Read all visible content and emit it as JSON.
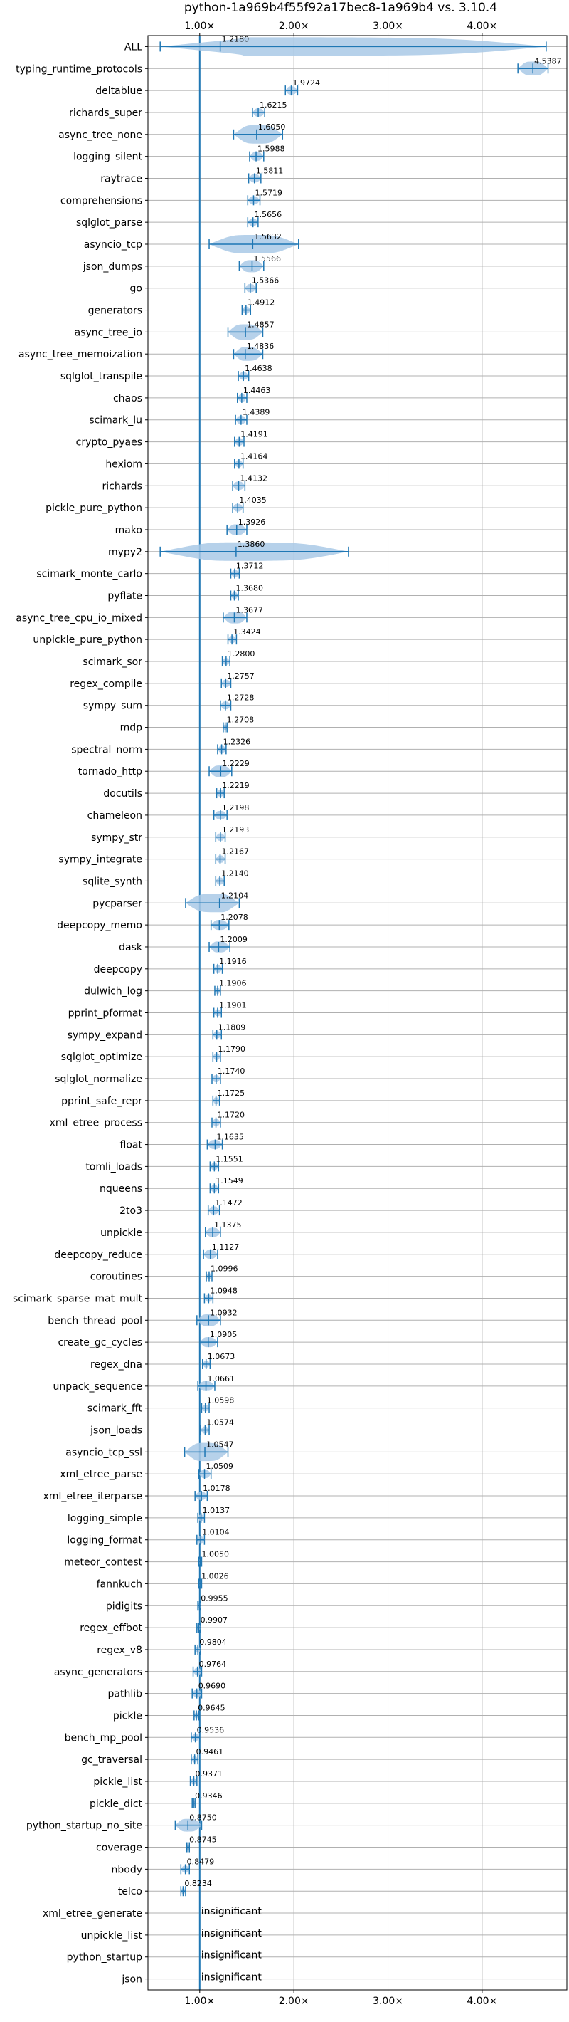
{
  "chart_data": {
    "type": "violin",
    "title": "python-1a969b4f55f92a17bec8-1a969b4 vs. 3.10.4",
    "xlim": [
      0.45,
      4.9
    ],
    "xticks": [
      {
        "value": 1,
        "label": "1.00×"
      },
      {
        "value": 2,
        "label": "2.00×"
      },
      {
        "value": 3,
        "label": "3.00×"
      },
      {
        "value": 4,
        "label": "4.00×"
      }
    ],
    "reference_line": 1.0,
    "grid": true,
    "colors": {
      "violin": "#1f77b4",
      "violin_fill": "#a9c9e6",
      "grid": "#b0b0b0",
      "text": "#000000"
    },
    "benchmarks": [
      {
        "name": "ALL",
        "value": 1.218,
        "label": "1.2180",
        "low": 0.58,
        "high": 4.68
      },
      {
        "name": "typing_runtime_protocols",
        "value": 4.5387,
        "label": "4.5387",
        "low": 4.38,
        "high": 4.7
      },
      {
        "name": "deltablue",
        "value": 1.9724,
        "label": "1.9724",
        "low": 1.91,
        "high": 2.04
      },
      {
        "name": "richards_super",
        "value": 1.6215,
        "label": "1.6215",
        "low": 1.56,
        "high": 1.69
      },
      {
        "name": "async_tree_none",
        "value": 1.605,
        "label": "1.6050",
        "low": 1.36,
        "high": 1.88
      },
      {
        "name": "logging_silent",
        "value": 1.5988,
        "label": "1.5988",
        "low": 1.53,
        "high": 1.68
      },
      {
        "name": "raytrace",
        "value": 1.5811,
        "label": "1.5811",
        "low": 1.52,
        "high": 1.65
      },
      {
        "name": "comprehensions",
        "value": 1.5719,
        "label": "1.5719",
        "low": 1.51,
        "high": 1.64
      },
      {
        "name": "sqlglot_parse",
        "value": 1.5656,
        "label": "1.5656",
        "low": 1.51,
        "high": 1.62
      },
      {
        "name": "asyncio_tcp",
        "value": 1.5632,
        "label": "1.5632",
        "low": 1.1,
        "high": 2.05
      },
      {
        "name": "json_dumps",
        "value": 1.5566,
        "label": "1.5566",
        "low": 1.42,
        "high": 1.68
      },
      {
        "name": "go",
        "value": 1.5366,
        "label": "1.5366",
        "low": 1.48,
        "high": 1.6
      },
      {
        "name": "generators",
        "value": 1.4912,
        "label": "1.4912",
        "low": 1.45,
        "high": 1.54
      },
      {
        "name": "async_tree_io",
        "value": 1.4857,
        "label": "1.4857",
        "low": 1.3,
        "high": 1.67
      },
      {
        "name": "async_tree_memoization",
        "value": 1.4836,
        "label": "1.4836",
        "low": 1.36,
        "high": 1.67
      },
      {
        "name": "sqlglot_transpile",
        "value": 1.4638,
        "label": "1.4638",
        "low": 1.41,
        "high": 1.52
      },
      {
        "name": "chaos",
        "value": 1.4463,
        "label": "1.4463",
        "low": 1.4,
        "high": 1.5
      },
      {
        "name": "scimark_lu",
        "value": 1.4389,
        "label": "1.4389",
        "low": 1.38,
        "high": 1.5
      },
      {
        "name": "crypto_pyaes",
        "value": 1.4191,
        "label": "1.4191",
        "low": 1.37,
        "high": 1.47
      },
      {
        "name": "hexiom",
        "value": 1.4164,
        "label": "1.4164",
        "low": 1.37,
        "high": 1.46
      },
      {
        "name": "richards",
        "value": 1.4132,
        "label": "1.4132",
        "low": 1.35,
        "high": 1.48
      },
      {
        "name": "pickle_pure_python",
        "value": 1.4035,
        "label": "1.4035",
        "low": 1.35,
        "high": 1.46
      },
      {
        "name": "mako",
        "value": 1.3926,
        "label": "1.3926",
        "low": 1.29,
        "high": 1.5
      },
      {
        "name": "mypy2",
        "value": 1.386,
        "label": "1.3860",
        "low": 0.58,
        "high": 2.58
      },
      {
        "name": "scimark_monte_carlo",
        "value": 1.3712,
        "label": "1.3712",
        "low": 1.33,
        "high": 1.42
      },
      {
        "name": "pyflate",
        "value": 1.368,
        "label": "1.3680",
        "low": 1.33,
        "high": 1.41
      },
      {
        "name": "async_tree_cpu_io_mixed",
        "value": 1.3677,
        "label": "1.3677",
        "low": 1.25,
        "high": 1.5
      },
      {
        "name": "unpickle_pure_python",
        "value": 1.3424,
        "label": "1.3424",
        "low": 1.3,
        "high": 1.39
      },
      {
        "name": "scimark_sor",
        "value": 1.28,
        "label": "1.2800",
        "low": 1.24,
        "high": 1.32
      },
      {
        "name": "regex_compile",
        "value": 1.2757,
        "label": "1.2757",
        "low": 1.23,
        "high": 1.33
      },
      {
        "name": "sympy_sum",
        "value": 1.2728,
        "label": "1.2728",
        "low": 1.22,
        "high": 1.33
      },
      {
        "name": "mdp",
        "value": 1.2708,
        "label": "1.2708",
        "low": 1.25,
        "high": 1.29
      },
      {
        "name": "spectral_norm",
        "value": 1.2326,
        "label": "1.2326",
        "low": 1.19,
        "high": 1.28
      },
      {
        "name": "tornado_http",
        "value": 1.2229,
        "label": "1.2229",
        "low": 1.1,
        "high": 1.34
      },
      {
        "name": "docutils",
        "value": 1.2219,
        "label": "1.2219",
        "low": 1.18,
        "high": 1.26
      },
      {
        "name": "chameleon",
        "value": 1.2198,
        "label": "1.2198",
        "low": 1.15,
        "high": 1.29
      },
      {
        "name": "sympy_str",
        "value": 1.2193,
        "label": "1.2193",
        "low": 1.17,
        "high": 1.27
      },
      {
        "name": "sympy_integrate",
        "value": 1.2167,
        "label": "1.2167",
        "low": 1.17,
        "high": 1.27
      },
      {
        "name": "sqlite_synth",
        "value": 1.214,
        "label": "1.2140",
        "low": 1.17,
        "high": 1.26
      },
      {
        "name": "pycparser",
        "value": 1.2104,
        "label": "1.2104",
        "low": 0.85,
        "high": 1.42
      },
      {
        "name": "deepcopy_memo",
        "value": 1.2078,
        "label": "1.2078",
        "low": 1.12,
        "high": 1.31
      },
      {
        "name": "dask",
        "value": 1.2009,
        "label": "1.2009",
        "low": 1.1,
        "high": 1.32
      },
      {
        "name": "deepcopy",
        "value": 1.1916,
        "label": "1.1916",
        "low": 1.15,
        "high": 1.24
      },
      {
        "name": "dulwich_log",
        "value": 1.1906,
        "label": "1.1906",
        "low": 1.16,
        "high": 1.22
      },
      {
        "name": "pprint_pformat",
        "value": 1.1901,
        "label": "1.1901",
        "low": 1.15,
        "high": 1.23
      },
      {
        "name": "sympy_expand",
        "value": 1.1809,
        "label": "1.1809",
        "low": 1.14,
        "high": 1.23
      },
      {
        "name": "sqlglot_optimize",
        "value": 1.179,
        "label": "1.1790",
        "low": 1.14,
        "high": 1.22
      },
      {
        "name": "sqlglot_normalize",
        "value": 1.174,
        "label": "1.1740",
        "low": 1.13,
        "high": 1.22
      },
      {
        "name": "pprint_safe_repr",
        "value": 1.1725,
        "label": "1.1725",
        "low": 1.14,
        "high": 1.21
      },
      {
        "name": "xml_etree_process",
        "value": 1.172,
        "label": "1.1720",
        "low": 1.13,
        "high": 1.22
      },
      {
        "name": "float",
        "value": 1.1635,
        "label": "1.1635",
        "low": 1.08,
        "high": 1.24
      },
      {
        "name": "tomli_loads",
        "value": 1.1551,
        "label": "1.1551",
        "low": 1.11,
        "high": 1.2
      },
      {
        "name": "nqueens",
        "value": 1.1549,
        "label": "1.1549",
        "low": 1.11,
        "high": 1.2
      },
      {
        "name": "2to3",
        "value": 1.1472,
        "label": "1.1472",
        "low": 1.09,
        "high": 1.21
      },
      {
        "name": "unpickle",
        "value": 1.1375,
        "label": "1.1375",
        "low": 1.06,
        "high": 1.22
      },
      {
        "name": "deepcopy_reduce",
        "value": 1.1127,
        "label": "1.1127",
        "low": 1.04,
        "high": 1.19
      },
      {
        "name": "coroutines",
        "value": 1.0996,
        "label": "1.0996",
        "low": 1.07,
        "high": 1.13
      },
      {
        "name": "scimark_sparse_mat_mult",
        "value": 1.0948,
        "label": "1.0948",
        "low": 1.05,
        "high": 1.14
      },
      {
        "name": "bench_thread_pool",
        "value": 1.0932,
        "label": "1.0932",
        "low": 0.97,
        "high": 1.22
      },
      {
        "name": "create_gc_cycles",
        "value": 1.0905,
        "label": "1.0905",
        "low": 1.0,
        "high": 1.19
      },
      {
        "name": "regex_dna",
        "value": 1.0673,
        "label": "1.0673",
        "low": 1.03,
        "high": 1.11
      },
      {
        "name": "unpack_sequence",
        "value": 1.0661,
        "label": "1.0661",
        "low": 0.98,
        "high": 1.16
      },
      {
        "name": "scimark_fft",
        "value": 1.0598,
        "label": "1.0598",
        "low": 1.02,
        "high": 1.1
      },
      {
        "name": "json_loads",
        "value": 1.0574,
        "label": "1.0574",
        "low": 1.01,
        "high": 1.1
      },
      {
        "name": "asyncio_tcp_ssl",
        "value": 1.0547,
        "label": "1.0547",
        "low": 0.84,
        "high": 1.3
      },
      {
        "name": "xml_etree_parse",
        "value": 1.0509,
        "label": "1.0509",
        "low": 0.99,
        "high": 1.12
      },
      {
        "name": "xml_etree_iterparse",
        "value": 1.0178,
        "label": "1.0178",
        "low": 0.95,
        "high": 1.08
      },
      {
        "name": "logging_simple",
        "value": 1.0137,
        "label": "1.0137",
        "low": 0.98,
        "high": 1.05
      },
      {
        "name": "logging_format",
        "value": 1.0104,
        "label": "1.0104",
        "low": 0.97,
        "high": 1.05
      },
      {
        "name": "meteor_contest",
        "value": 1.005,
        "label": "1.0050",
        "low": 0.99,
        "high": 1.02
      },
      {
        "name": "fannkuch",
        "value": 1.0026,
        "label": "1.0026",
        "low": 0.99,
        "high": 1.02
      },
      {
        "name": "pidigits",
        "value": 0.9955,
        "label": "0.9955",
        "low": 0.98,
        "high": 1.01
      },
      {
        "name": "regex_effbot",
        "value": 0.9907,
        "label": "0.9907",
        "low": 0.97,
        "high": 1.01
      },
      {
        "name": "regex_v8",
        "value": 0.9804,
        "label": "0.9804",
        "low": 0.95,
        "high": 1.01
      },
      {
        "name": "async_generators",
        "value": 0.9764,
        "label": "0.9764",
        "low": 0.93,
        "high": 1.02
      },
      {
        "name": "pathlib",
        "value": 0.969,
        "label": "0.9690",
        "low": 0.92,
        "high": 1.02
      },
      {
        "name": "pickle",
        "value": 0.9645,
        "label": "0.9645",
        "low": 0.94,
        "high": 0.99
      },
      {
        "name": "bench_mp_pool",
        "value": 0.9536,
        "label": "0.9536",
        "low": 0.91,
        "high": 1.0
      },
      {
        "name": "gc_traversal",
        "value": 0.9461,
        "label": "0.9461",
        "low": 0.91,
        "high": 0.98
      },
      {
        "name": "pickle_list",
        "value": 0.9371,
        "label": "0.9371",
        "low": 0.9,
        "high": 0.97
      },
      {
        "name": "pickle_dict",
        "value": 0.9346,
        "label": "0.9346",
        "low": 0.92,
        "high": 0.95
      },
      {
        "name": "python_startup_no_site",
        "value": 0.875,
        "label": "0.8750",
        "low": 0.74,
        "high": 1.02
      },
      {
        "name": "coverage",
        "value": 0.8745,
        "label": "0.8745",
        "low": 0.86,
        "high": 0.89
      },
      {
        "name": "nbody",
        "value": 0.8479,
        "label": "0.8479",
        "low": 0.8,
        "high": 0.89
      },
      {
        "name": "telco",
        "value": 0.8234,
        "label": "0.8234",
        "low": 0.8,
        "high": 0.85
      },
      {
        "name": "xml_etree_generate",
        "value": null,
        "label": "insignificant"
      },
      {
        "name": "unpickle_list",
        "value": null,
        "label": "insignificant"
      },
      {
        "name": "python_startup",
        "value": null,
        "label": "insignificant"
      },
      {
        "name": "json",
        "value": null,
        "label": "insignificant"
      }
    ]
  }
}
